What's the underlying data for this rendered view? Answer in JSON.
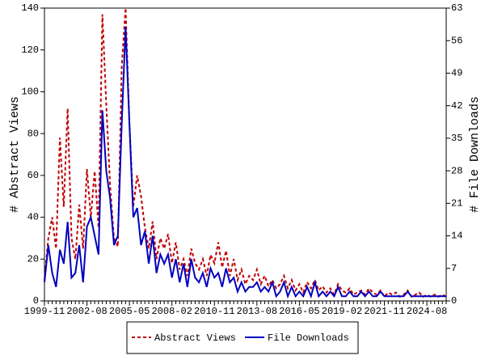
{
  "chart_data": {
    "type": "line",
    "categories": [
      "1999-11",
      null,
      null,
      null,
      null,
      null,
      null,
      null,
      null,
      null,
      null,
      "2002-08",
      null,
      null,
      null,
      null,
      null,
      null,
      null,
      null,
      null,
      null,
      "2005-05",
      null,
      null,
      null,
      null,
      null,
      null,
      null,
      null,
      null,
      null,
      "2008-02",
      null,
      null,
      null,
      null,
      null,
      null,
      null,
      null,
      null,
      null,
      "2010-11",
      null,
      null,
      null,
      null,
      null,
      null,
      null,
      null,
      null,
      null,
      "2013-08",
      null,
      null,
      null,
      null,
      null,
      null,
      null,
      null,
      null,
      null,
      "2016-05",
      null,
      null,
      null,
      null,
      null,
      null,
      null,
      null,
      null,
      null,
      "2019-02",
      null,
      null,
      null,
      null,
      null,
      null,
      null,
      null,
      null,
      null,
      "2021-11",
      null,
      null,
      null,
      null,
      null,
      null,
      null,
      null,
      null,
      null,
      "2024-08",
      null,
      null,
      null,
      null,
      null
    ],
    "ylabel": "# Abstract Views",
    "y2label": "# File Downloads",
    "ylim": [
      0,
      140
    ],
    "yticks": [
      0,
      20,
      40,
      60,
      80,
      100,
      120,
      140
    ],
    "y2lim": [
      0,
      63
    ],
    "y2ticks": [
      0,
      7,
      14,
      21,
      28,
      35,
      42,
      49,
      56,
      63
    ],
    "legend": "bottom",
    "series": [
      {
        "name": "Abstract Views",
        "color": "#c00000",
        "line_style": "dashed",
        "values": [
          10,
          30,
          40,
          25,
          78,
          45,
          92,
          30,
          20,
          46,
          25,
          63,
          40,
          62,
          35,
          137,
          94,
          55,
          30,
          26,
          112,
          140,
          85,
          45,
          60,
          50,
          35,
          25,
          38,
          20,
          30,
          25,
          32,
          18,
          28,
          15,
          20,
          12,
          25,
          18,
          15,
          20,
          12,
          22,
          18,
          28,
          16,
          24,
          12,
          20,
          10,
          15,
          8,
          12,
          10,
          15,
          8,
          12,
          7,
          10,
          6,
          8,
          12,
          6,
          10,
          5,
          8,
          4,
          9,
          6,
          10,
          5,
          7,
          4,
          6,
          3,
          8,
          5,
          4,
          6,
          3,
          4,
          5,
          3,
          6,
          4,
          3,
          5,
          2,
          4,
          3,
          4,
          2,
          3,
          5,
          2,
          3,
          4,
          2,
          3,
          2,
          3,
          2,
          3,
          2
        ]
      },
      {
        "name": "File Downloads",
        "color": "#0000c0",
        "line_style": "solid",
        "axis": "y2",
        "values": [
          4,
          12,
          6,
          3,
          11,
          8,
          17,
          5,
          6,
          12,
          4,
          16,
          18,
          14,
          10,
          41,
          28,
          22,
          12,
          14,
          38,
          59,
          38,
          18,
          20,
          12,
          15,
          8,
          14,
          6,
          10,
          8,
          10,
          5,
          9,
          4,
          8,
          3,
          9,
          5,
          4,
          6,
          3,
          7,
          5,
          6,
          3,
          7,
          4,
          5,
          2,
          4,
          2,
          3,
          3,
          4,
          2,
          3,
          2,
          4,
          1,
          2,
          4,
          1,
          3,
          1,
          2,
          1,
          3,
          1,
          4,
          1,
          2,
          1,
          2,
          1,
          3,
          1,
          1,
          2,
          1,
          1,
          2,
          1,
          2,
          1,
          1,
          2,
          1,
          1,
          1,
          1,
          1,
          1,
          2,
          1,
          1,
          1,
          1,
          1,
          1,
          1,
          1,
          1,
          1
        ]
      }
    ]
  }
}
